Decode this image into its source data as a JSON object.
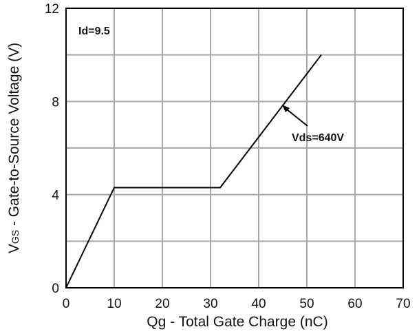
{
  "chart_data": {
    "type": "line",
    "title": "",
    "xlabel": "Qg - Total Gate Charge (nC)",
    "ylabel_prefix": "V",
    "ylabel_sub": "GS",
    "ylabel_rest": " - Gate-to-Source Voltage (V)",
    "xlim": [
      0,
      70
    ],
    "ylim": [
      0,
      12
    ],
    "x_ticks": [
      "0",
      "10",
      "20",
      "30",
      "40",
      "50",
      "60",
      "70"
    ],
    "y_ticks": [
      "0",
      "4",
      "8",
      "12"
    ],
    "grid": true,
    "series": [
      {
        "name": "Vds=640V",
        "x": [
          0,
          10,
          32,
          53
        ],
        "y": [
          0,
          4.3,
          4.3,
          10
        ]
      }
    ],
    "annotations": {
      "condition": "Id=9.5",
      "series_label": "Vds=640V"
    }
  }
}
